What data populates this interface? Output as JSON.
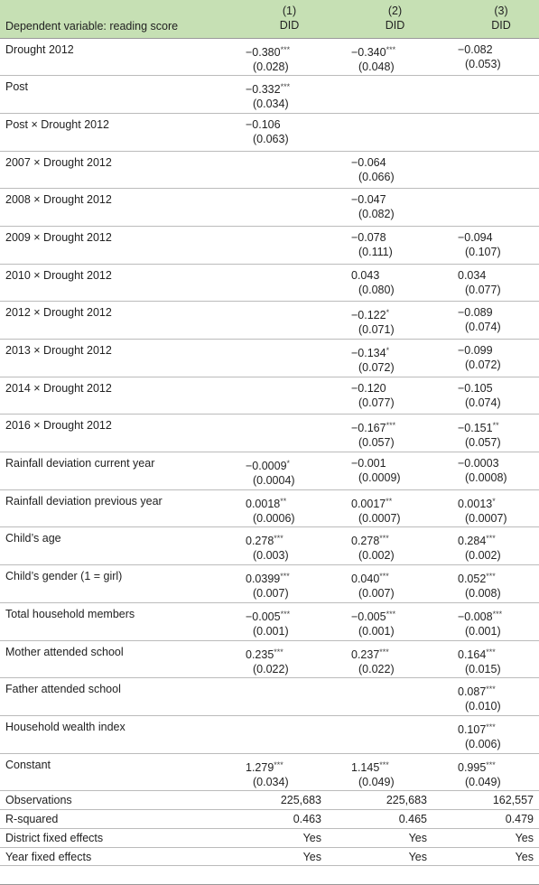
{
  "table": {
    "header": {
      "label": "Dependent variable: reading score",
      "columns": [
        {
          "number": "(1)",
          "method": "DID"
        },
        {
          "number": "(2)",
          "method": "DID"
        },
        {
          "number": "(3)",
          "method": "DID"
        }
      ]
    },
    "rows": [
      {
        "label": "Drought 2012",
        "cells": [
          {
            "coef": "−0.380",
            "stars": "***",
            "se": "(0.028)"
          },
          {
            "coef": "−0.340",
            "stars": "***",
            "se": "(0.048)"
          },
          {
            "coef": "−0.082",
            "se": "(0.053)"
          }
        ]
      },
      {
        "label": "Post",
        "cells": [
          {
            "coef": "−0.332",
            "stars": "***",
            "se": "(0.034)"
          },
          null,
          null
        ]
      },
      {
        "label": "Post × Drought 2012",
        "cells": [
          {
            "coef": "−0.106",
            "se": "(0.063)"
          },
          null,
          null
        ]
      },
      {
        "label": "2007 × Drought 2012",
        "cells": [
          null,
          {
            "coef": "−0.064",
            "se": "(0.066)"
          },
          null
        ]
      },
      {
        "label": "2008 × Drought 2012",
        "cells": [
          null,
          {
            "coef": "−0.047",
            "se": "(0.082)"
          },
          null
        ]
      },
      {
        "label": "2009 × Drought 2012",
        "cells": [
          null,
          {
            "coef": "−0.078",
            "se": "(0.111)"
          },
          {
            "coef": "−0.094",
            "se": "(0.107)"
          }
        ]
      },
      {
        "label": "2010 × Drought 2012",
        "cells": [
          null,
          {
            "coef": "0.043",
            "se": "(0.080)"
          },
          {
            "coef": "0.034",
            "se": "(0.077)"
          }
        ]
      },
      {
        "label": "2012 × Drought 2012",
        "cells": [
          null,
          {
            "coef": "−0.122",
            "stars": "*",
            "se": "(0.071)"
          },
          {
            "coef": "−0.089",
            "se": "(0.074)"
          }
        ]
      },
      {
        "label": "2013 × Drought 2012",
        "cells": [
          null,
          {
            "coef": "−0.134",
            "stars": "*",
            "se": "(0.072)"
          },
          {
            "coef": "−0.099",
            "se": "(0.072)"
          }
        ]
      },
      {
        "label": "2014 × Drought 2012",
        "cells": [
          null,
          {
            "coef": "−0.120",
            "se": "(0.077)"
          },
          {
            "coef": "−0.105",
            "se": "(0.074)"
          }
        ]
      },
      {
        "label": "2016 × Drought 2012",
        "cells": [
          null,
          {
            "coef": "−0.167",
            "stars": "***",
            "se": "(0.057)"
          },
          {
            "coef": "−0.151",
            "stars": "**",
            "se": "(0.057)"
          }
        ]
      },
      {
        "label": "Rainfall deviation current year",
        "cells": [
          {
            "coef": "−0.0009",
            "stars": "*",
            "se": "(0.0004)"
          },
          {
            "coef": "−0.001",
            "se": "(0.0009)"
          },
          {
            "coef": "−0.0003",
            "se": "(0.0008)"
          }
        ]
      },
      {
        "label": "Rainfall deviation previous year",
        "cells": [
          {
            "coef": "0.0018",
            "stars": "**",
            "se": "(0.0006)"
          },
          {
            "coef": "0.0017",
            "stars": "**",
            "se": "(0.0007)"
          },
          {
            "coef": "0.0013",
            "stars": "*",
            "se": "(0.0007)"
          }
        ]
      },
      {
        "label": "Child’s age",
        "cells": [
          {
            "coef": "0.278",
            "stars": "***",
            "se": "(0.003)"
          },
          {
            "coef": "0.278",
            "stars": "***",
            "se": "(0.002)"
          },
          {
            "coef": "0.284",
            "stars": "***",
            "se": "(0.002)"
          }
        ]
      },
      {
        "label": "Child’s gender (1 = girl)",
        "cells": [
          {
            "coef": "0.0399",
            "stars": "***",
            "se": "(0.007)"
          },
          {
            "coef": "0.040",
            "stars": "***",
            "se": "(0.007)"
          },
          {
            "coef": "0.052",
            "stars": "***",
            "se": "(0.008)"
          }
        ]
      },
      {
        "label": "Total household members",
        "cells": [
          {
            "coef": "−0.005",
            "stars": "***",
            "se": "(0.001)"
          },
          {
            "coef": "−0.005",
            "stars": "***",
            "se": "(0.001)"
          },
          {
            "coef": "−0.008",
            "stars": "***",
            "se": "(0.001)"
          }
        ]
      },
      {
        "label": "Mother attended school",
        "cells": [
          {
            "coef": "0.235",
            "stars": "***",
            "se": "(0.022)"
          },
          {
            "coef": "0.237",
            "stars": "***",
            "se": "(0.022)"
          },
          {
            "coef": "0.164",
            "stars": "***",
            "se": "(0.015)"
          }
        ]
      },
      {
        "label": "Father attended school",
        "cells": [
          null,
          null,
          {
            "coef": "0.087",
            "stars": "***",
            "se": "(0.010)"
          }
        ]
      },
      {
        "label": "Household wealth index",
        "cells": [
          null,
          null,
          {
            "coef": "0.107",
            "stars": "***",
            "se": "(0.006)"
          }
        ]
      },
      {
        "label": "Constant",
        "cells": [
          {
            "coef": "1.279",
            "stars": "***",
            "se": "(0.034)"
          },
          {
            "coef": "1.145",
            "stars": "***",
            "se": "(0.049)"
          },
          {
            "coef": "0.995",
            "stars": "***",
            "se": "(0.049)"
          }
        ]
      }
    ],
    "stats": [
      {
        "label": "Observations",
        "values": [
          "225,683",
          "225,683",
          "162,557"
        ]
      },
      {
        "label": "R-squared",
        "values": [
          "0.463",
          "0.465",
          "0.479"
        ]
      },
      {
        "label": "District fixed effects",
        "values": [
          "Yes",
          "Yes",
          "Yes"
        ]
      },
      {
        "label": "Year fixed effects",
        "values": [
          "Yes",
          "Yes",
          "Yes"
        ]
      }
    ]
  }
}
